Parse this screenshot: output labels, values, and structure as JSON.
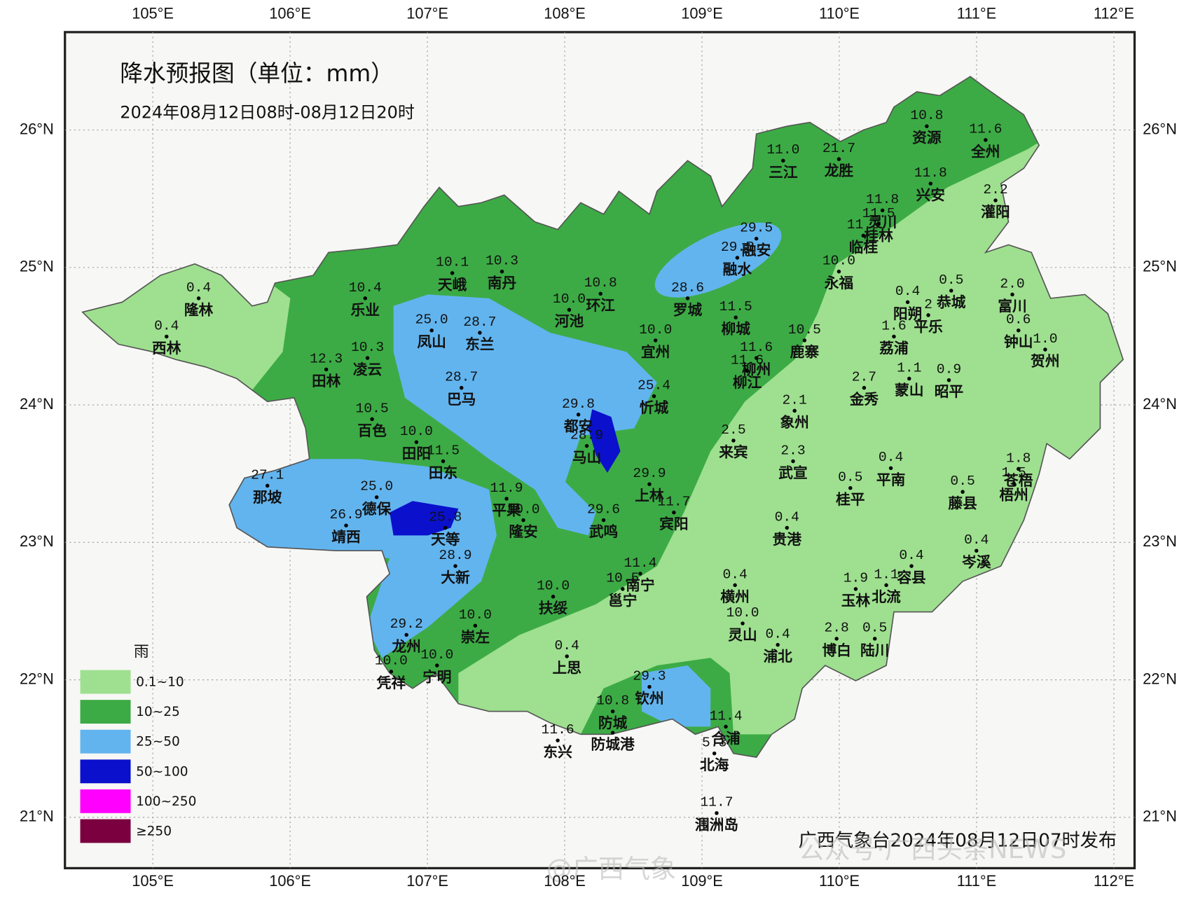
{
  "map": {
    "title": "降水预报图（单位：mm）",
    "subtitle": "2024年08月12日08时-08月12日20时",
    "longitudes": [
      "105°E",
      "106°E",
      "107°E",
      "108°E",
      "109°E",
      "110°E",
      "111°E",
      "112°E"
    ],
    "latitudes": [
      "26°N",
      "25°N",
      "24°N",
      "23°N",
      "22°N",
      "21°N"
    ],
    "stations": [
      {
        "value": "10.8",
        "name": "资源"
      },
      {
        "value": "11.6",
        "name": "全州"
      },
      {
        "value": "11.0",
        "name": "三江"
      },
      {
        "value": "21.7",
        "name": "龙胜"
      },
      {
        "value": "11.8",
        "name": "兴安"
      },
      {
        "value": "2.2",
        "name": "灌阳"
      },
      {
        "value": "11.8",
        "name": "灵川"
      },
      {
        "value": "11.5",
        "name": "桂林"
      },
      {
        "value": "11.3",
        "name": "临桂"
      },
      {
        "value": "29.5",
        "name": "融安"
      },
      {
        "value": "29.5",
        "name": "融水"
      },
      {
        "value": "10.0",
        "name": "永福"
      },
      {
        "value": "0.5",
        "name": "恭城"
      },
      {
        "value": "2.0",
        "name": "富川"
      },
      {
        "value": "0.4",
        "name": "阳朔"
      },
      {
        "value": "2",
        "name": "平乐"
      },
      {
        "value": "0.6",
        "name": "钟山"
      },
      {
        "value": "1.0",
        "name": "贺州"
      },
      {
        "value": "0.4",
        "name": "隆林"
      },
      {
        "value": "0.4",
        "name": "西林"
      },
      {
        "value": "10.1",
        "name": "天峨"
      },
      {
        "value": "10.3",
        "name": "南丹"
      },
      {
        "value": "10.4",
        "name": "乐业"
      },
      {
        "value": "10.8",
        "name": "环江"
      },
      {
        "value": "10.0",
        "name": "河池"
      },
      {
        "value": "28.6",
        "name": "罗城"
      },
      {
        "value": "11.5",
        "name": "柳城"
      },
      {
        "value": "25.0",
        "name": "凤山"
      },
      {
        "value": "28.7",
        "name": "东兰"
      },
      {
        "value": "10.0",
        "name": "宜州"
      },
      {
        "value": "10.5",
        "name": "鹿寨"
      },
      {
        "value": "1.6",
        "name": "荔浦"
      },
      {
        "value": "11.6",
        "name": "柳州"
      },
      {
        "value": "11.6",
        "name": "柳江"
      },
      {
        "value": "10.3",
        "name": "凌云"
      },
      {
        "value": "12.3",
        "name": "田林"
      },
      {
        "value": "2.7",
        "name": "金秀"
      },
      {
        "value": "1.1",
        "name": "蒙山"
      },
      {
        "value": "0.9",
        "name": "昭平"
      },
      {
        "value": "28.7",
        "name": "巴马"
      },
      {
        "value": "25.4",
        "name": "忻城"
      },
      {
        "value": "2.1",
        "name": "象州"
      },
      {
        "value": "10.5",
        "name": "百色"
      },
      {
        "value": "29.8",
        "name": "都安"
      },
      {
        "value": "28.9",
        "name": "马山"
      },
      {
        "value": "10.0",
        "name": "田阳"
      },
      {
        "value": "11.5",
        "name": "田东"
      },
      {
        "value": "2.5",
        "name": "来宾"
      },
      {
        "value": "2.3",
        "name": "武宣"
      },
      {
        "value": "0.4",
        "name": "平南"
      },
      {
        "value": "0.5",
        "name": "桂平"
      },
      {
        "value": "27.1",
        "name": "那坡"
      },
      {
        "value": "29.9",
        "name": "上林"
      },
      {
        "value": "25.0",
        "name": "德保"
      },
      {
        "value": "11.9",
        "name": "平果"
      },
      {
        "value": "10.0",
        "name": "隆安"
      },
      {
        "value": "29.6",
        "name": "武鸣"
      },
      {
        "value": "11.7",
        "name": "宾阳"
      },
      {
        "value": "1.5",
        "name": "梧州"
      },
      {
        "value": "1.8",
        "name": "苍梧"
      },
      {
        "value": "0.5",
        "name": "藤县"
      },
      {
        "value": "26.9",
        "name": "靖西"
      },
      {
        "value": "25.8",
        "name": "天等"
      },
      {
        "value": "0.4",
        "name": "贵港"
      },
      {
        "value": "0.4",
        "name": "岑溪"
      },
      {
        "value": "28.9",
        "name": "大新"
      },
      {
        "value": "11.4",
        "name": "南宁"
      },
      {
        "value": "10.5",
        "name": "邕宁"
      },
      {
        "value": "0.4",
        "name": "横州"
      },
      {
        "value": "0.4",
        "name": "容县"
      },
      {
        "value": "1.1",
        "name": "北流"
      },
      {
        "value": "1.9",
        "name": "玉林"
      },
      {
        "value": "10.0",
        "name": "扶绥"
      },
      {
        "value": "10.0",
        "name": "崇左"
      },
      {
        "value": "10.0",
        "name": "灵山"
      },
      {
        "value": "0.4",
        "name": "浦北"
      },
      {
        "value": "2.8",
        "name": "博白"
      },
      {
        "value": "0.5",
        "name": "陆川"
      },
      {
        "value": "29.2",
        "name": "龙州"
      },
      {
        "value": "0.4",
        "name": "上思"
      },
      {
        "value": "10.0",
        "name": "凭祥"
      },
      {
        "value": "10.0",
        "name": "宁明"
      },
      {
        "value": "29.3",
        "name": "钦州"
      },
      {
        "value": "10.8",
        "name": "防城"
      },
      {
        "value": "11.4",
        "name": "合浦"
      },
      {
        "value": "11.6",
        "name": "东兴"
      },
      {
        "name": "防城港"
      },
      {
        "value": "5.3",
        "name": "北海"
      },
      {
        "value": "11.7",
        "name": "涠洲岛"
      }
    ],
    "legend": {
      "title": "雨",
      "items": [
        {
          "label": "0.1~10",
          "color": "#9ee08f"
        },
        {
          "label": "10~25",
          "color": "#3cab45"
        },
        {
          "label": "25~50",
          "color": "#62b4ee"
        },
        {
          "label": "50~100",
          "color": "#0a10cc"
        },
        {
          "label": "100~250",
          "color": "#ff00ff"
        },
        {
          "label": "≥250",
          "color": "#7a0040"
        }
      ]
    },
    "publisher": "广西气象台2024年08月12日07时发布",
    "watermarks": [
      "@广西气象",
      "公众号·广西头条NEWS"
    ]
  }
}
